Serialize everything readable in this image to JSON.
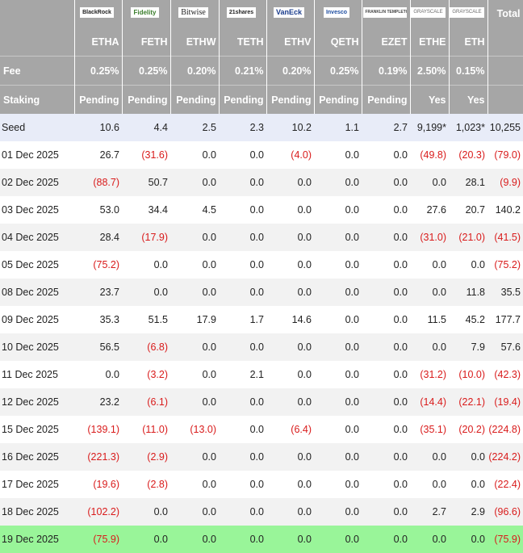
{
  "header": {
    "logos": [
      "BlackRock",
      "Fidelity",
      "Bitwise",
      "21shares",
      "VanEck",
      "Invesco",
      "FRANKLIN TEMPLETON",
      "GRAYSCALE",
      "GRAYSCALE"
    ],
    "total_label": "Total",
    "tickers": [
      "ETHA",
      "FETH",
      "ETHW",
      "TETH",
      "ETHV",
      "QETH",
      "EZET",
      "ETHE",
      "ETH"
    ],
    "fee_label": "Fee",
    "fees": [
      "0.25%",
      "0.25%",
      "0.20%",
      "0.21%",
      "0.20%",
      "0.25%",
      "0.19%",
      "2.50%",
      "0.15%"
    ],
    "staking_label": "Staking",
    "staking": [
      "Pending",
      "Pending",
      "Pending",
      "Pending",
      "Pending",
      "Pending",
      "Pending",
      "Yes",
      "Yes"
    ]
  },
  "rows": [
    {
      "date": "Seed",
      "values": [
        "10.6",
        "4.4",
        "2.5",
        "2.3",
        "10.2",
        "1.1",
        "2.7",
        "9,199*",
        "1,023*",
        "10,255"
      ]
    },
    {
      "date": "01 Dec 2025",
      "values": [
        "26.7",
        "(31.6)",
        "0.0",
        "0.0",
        "(4.0)",
        "0.0",
        "0.0",
        "(49.8)",
        "(20.3)",
        "(79.0)"
      ]
    },
    {
      "date": "02 Dec 2025",
      "values": [
        "(88.7)",
        "50.7",
        "0.0",
        "0.0",
        "0.0",
        "0.0",
        "0.0",
        "0.0",
        "28.1",
        "(9.9)"
      ]
    },
    {
      "date": "03 Dec 2025",
      "values": [
        "53.0",
        "34.4",
        "4.5",
        "0.0",
        "0.0",
        "0.0",
        "0.0",
        "27.6",
        "20.7",
        "140.2"
      ]
    },
    {
      "date": "04 Dec 2025",
      "values": [
        "28.4",
        "(17.9)",
        "0.0",
        "0.0",
        "0.0",
        "0.0",
        "0.0",
        "(31.0)",
        "(21.0)",
        "(41.5)"
      ]
    },
    {
      "date": "05 Dec 2025",
      "values": [
        "(75.2)",
        "0.0",
        "0.0",
        "0.0",
        "0.0",
        "0.0",
        "0.0",
        "0.0",
        "0.0",
        "(75.2)"
      ]
    },
    {
      "date": "08 Dec 2025",
      "values": [
        "23.7",
        "0.0",
        "0.0",
        "0.0",
        "0.0",
        "0.0",
        "0.0",
        "0.0",
        "11.8",
        "35.5"
      ]
    },
    {
      "date": "09 Dec 2025",
      "values": [
        "35.3",
        "51.5",
        "17.9",
        "1.7",
        "14.6",
        "0.0",
        "0.0",
        "11.5",
        "45.2",
        "177.7"
      ]
    },
    {
      "date": "10 Dec 2025",
      "values": [
        "56.5",
        "(6.8)",
        "0.0",
        "0.0",
        "0.0",
        "0.0",
        "0.0",
        "0.0",
        "7.9",
        "57.6"
      ]
    },
    {
      "date": "11 Dec 2025",
      "values": [
        "0.0",
        "(3.2)",
        "0.0",
        "2.1",
        "0.0",
        "0.0",
        "0.0",
        "(31.2)",
        "(10.0)",
        "(42.3)"
      ]
    },
    {
      "date": "12 Dec 2025",
      "values": [
        "23.2",
        "(6.1)",
        "0.0",
        "0.0",
        "0.0",
        "0.0",
        "0.0",
        "(14.4)",
        "(22.1)",
        "(19.4)"
      ]
    },
    {
      "date": "15 Dec 2025",
      "values": [
        "(139.1)",
        "(11.0)",
        "(13.0)",
        "0.0",
        "(6.4)",
        "0.0",
        "0.0",
        "(35.1)",
        "(20.2)",
        "(224.8)"
      ]
    },
    {
      "date": "16 Dec 2025",
      "values": [
        "(221.3)",
        "(2.9)",
        "0.0",
        "0.0",
        "0.0",
        "0.0",
        "0.0",
        "0.0",
        "0.0",
        "(224.2)"
      ]
    },
    {
      "date": "17 Dec 2025",
      "values": [
        "(19.6)",
        "(2.8)",
        "0.0",
        "0.0",
        "0.0",
        "0.0",
        "0.0",
        "0.0",
        "0.0",
        "(22.4)"
      ]
    },
    {
      "date": "18 Dec 2025",
      "values": [
        "(102.2)",
        "0.0",
        "0.0",
        "0.0",
        "0.0",
        "0.0",
        "0.0",
        "2.7",
        "2.9",
        "(96.6)"
      ]
    },
    {
      "date": "19 Dec 2025",
      "values": [
        "(75.9)",
        "0.0",
        "0.0",
        "0.0",
        "0.0",
        "0.0",
        "0.0",
        "0.0",
        "0.0",
        "(75.9)"
      ]
    }
  ],
  "colors": {
    "header_bg": "#a6a6a6",
    "negative": "#d91b1b",
    "seed_row": "#e8ecf8",
    "highlight_row": "#99f599"
  }
}
